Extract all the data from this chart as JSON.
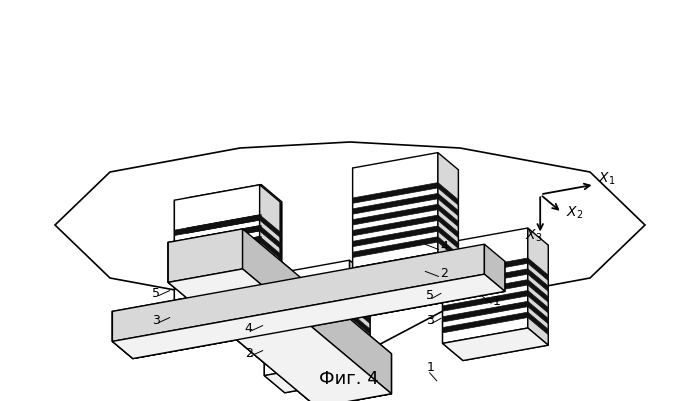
{
  "title": "Фиг. 4",
  "title_fontsize": 13,
  "bg_color": "#ffffff",
  "lc": "#000000",
  "col_top": "#f0f0f0",
  "col_side_light": "#e0e0e0",
  "col_side_dark": "#c8c8c8",
  "col_stripe_dark": "#1a1a1a",
  "col_stripe_light": "#e8e8e8",
  "fig_width": 6.99,
  "fig_height": 4.01,
  "dpi": 100
}
